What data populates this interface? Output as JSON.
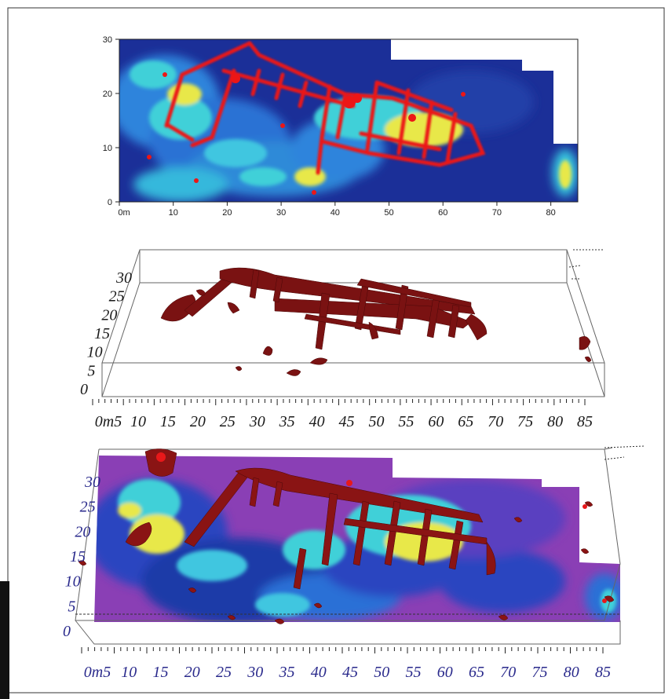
{
  "figure": {
    "panels": [
      {
        "id": "top-2d-map",
        "origin_label": "0m",
        "x_ticks": [
          "0m",
          "10",
          "20",
          "30",
          "40",
          "50",
          "60",
          "70",
          "80"
        ],
        "y_ticks": [
          "0",
          "10",
          "20",
          "30"
        ]
      },
      {
        "id": "middle-3d-isosurface",
        "origin_label": "0m5",
        "x_ticks": [
          "0m5",
          "10",
          "15",
          "20",
          "25",
          "30",
          "35",
          "40",
          "45",
          "50",
          "55",
          "60",
          "65",
          "70",
          "75",
          "80",
          "85"
        ],
        "y_ticks": [
          "0",
          "5",
          "10",
          "15",
          "20",
          "25",
          "30"
        ]
      },
      {
        "id": "bottom-3d-combined",
        "origin_label": "0m5",
        "x_ticks": [
          "0m5",
          "10",
          "15",
          "20",
          "25",
          "30",
          "35",
          "40",
          "45",
          "50",
          "55",
          "60",
          "65",
          "70",
          "75",
          "80",
          "85"
        ],
        "y_ticks": [
          "0",
          "5",
          "10",
          "15",
          "20",
          "25",
          "30"
        ]
      }
    ]
  },
  "colors": {
    "low": "#1a2a8c",
    "mid_low": "#2b6fd6",
    "mid": "#37c8e0",
    "mid_high": "#e6e84a",
    "high": "#e8181a",
    "isosurface": "#7a1212",
    "purple_bg": "#8a3fb5",
    "axis_text_dark": "#1a1a1a",
    "axis_text_blue": "#2a2a8c"
  },
  "chart_data": [
    {
      "type": "heatmap",
      "title": "",
      "xlabel": "",
      "ylabel": "",
      "xlim": [
        0,
        85
      ],
      "ylim": [
        0,
        30
      ],
      "x_ticks": [
        0,
        10,
        20,
        30,
        40,
        50,
        60,
        70,
        80
      ],
      "y_ticks": [
        0,
        10,
        20,
        30
      ],
      "color_scale": [
        "#1a2a8c",
        "#2b6fd6",
        "#37c8e0",
        "#e6e84a",
        "#e8181a"
      ],
      "grid": false,
      "legend": "none"
    },
    {
      "type": "scatter",
      "title": "",
      "xlabel": "",
      "ylabel": "",
      "xlim": [
        0,
        85
      ],
      "ylim": [
        0,
        30
      ],
      "x_ticks": [
        5,
        10,
        15,
        20,
        25,
        30,
        35,
        40,
        45,
        50,
        55,
        60,
        65,
        70,
        75,
        80,
        85
      ],
      "y_ticks": [
        0,
        5,
        10,
        15,
        20,
        25,
        30
      ],
      "grid": false,
      "legend": "none"
    },
    {
      "type": "heatmap",
      "title": "",
      "xlabel": "",
      "ylabel": "",
      "xlim": [
        0,
        85
      ],
      "ylim": [
        0,
        30
      ],
      "x_ticks": [
        5,
        10,
        15,
        20,
        25,
        30,
        35,
        40,
        45,
        50,
        55,
        60,
        65,
        70,
        75,
        80,
        85
      ],
      "y_ticks": [
        0,
        5,
        10,
        15,
        20,
        25,
        30
      ],
      "color_scale": [
        "#8a3fb5",
        "#1a2a8c",
        "#2b6fd6",
        "#37c8e0",
        "#e6e84a",
        "#e8181a"
      ],
      "grid": false,
      "legend": "none"
    }
  ]
}
